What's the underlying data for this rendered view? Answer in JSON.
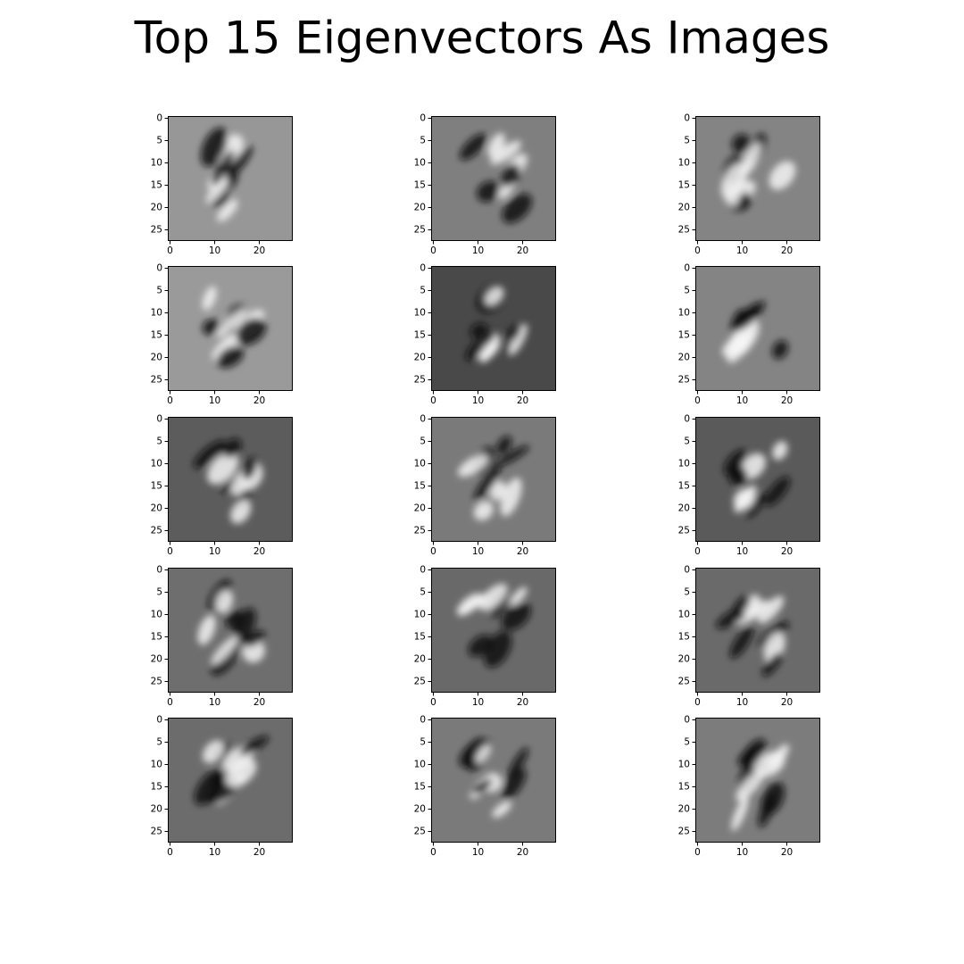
{
  "title": "Top 15 Eigenvectors As Images",
  "chart_data": [
    {
      "type": "image",
      "background": "#979797",
      "xlim": [
        -0.5,
        27.5
      ],
      "ylim": [
        27.5,
        -0.5
      ],
      "xticks": [
        0,
        10,
        20
      ],
      "yticks": [
        0,
        5,
        10,
        15,
        20,
        25
      ]
    },
    {
      "type": "image",
      "background": "#7f7f7f",
      "xlim": [
        -0.5,
        27.5
      ],
      "ylim": [
        27.5,
        -0.5
      ],
      "xticks": [
        0,
        10,
        20
      ],
      "yticks": [
        0,
        5,
        10,
        15,
        20,
        25
      ]
    },
    {
      "type": "image",
      "background": "#848484",
      "xlim": [
        -0.5,
        27.5
      ],
      "ylim": [
        27.5,
        -0.5
      ],
      "xticks": [
        0,
        10,
        20
      ],
      "yticks": [
        0,
        5,
        10,
        15,
        20,
        25
      ]
    },
    {
      "type": "image",
      "background": "#9a9a9a",
      "xlim": [
        -0.5,
        27.5
      ],
      "ylim": [
        27.5,
        -0.5
      ],
      "xticks": [
        0,
        10,
        20
      ],
      "yticks": [
        0,
        5,
        10,
        15,
        20,
        25
      ]
    },
    {
      "type": "image",
      "background": "#494949",
      "xlim": [
        -0.5,
        27.5
      ],
      "ylim": [
        27.5,
        -0.5
      ],
      "xticks": [
        0,
        10,
        20
      ],
      "yticks": [
        0,
        5,
        10,
        15,
        20,
        25
      ]
    },
    {
      "type": "image",
      "background": "#848484",
      "xlim": [
        -0.5,
        27.5
      ],
      "ylim": [
        27.5,
        -0.5
      ],
      "xticks": [
        0,
        10,
        20
      ],
      "yticks": [
        0,
        5,
        10,
        15,
        20,
        25
      ]
    },
    {
      "type": "image",
      "background": "#5c5c5c",
      "xlim": [
        -0.5,
        27.5
      ],
      "ylim": [
        27.5,
        -0.5
      ],
      "xticks": [
        0,
        10,
        20
      ],
      "yticks": [
        0,
        5,
        10,
        15,
        20,
        25
      ]
    },
    {
      "type": "image",
      "background": "#7a7a7a",
      "xlim": [
        -0.5,
        27.5
      ],
      "ylim": [
        27.5,
        -0.5
      ],
      "xticks": [
        0,
        10,
        20
      ],
      "yticks": [
        0,
        5,
        10,
        15,
        20,
        25
      ]
    },
    {
      "type": "image",
      "background": "#5a5a5a",
      "xlim": [
        -0.5,
        27.5
      ],
      "ylim": [
        27.5,
        -0.5
      ],
      "xticks": [
        0,
        10,
        20
      ],
      "yticks": [
        0,
        5,
        10,
        15,
        20,
        25
      ]
    },
    {
      "type": "image",
      "background": "#6e6e6e",
      "xlim": [
        -0.5,
        27.5
      ],
      "ylim": [
        27.5,
        -0.5
      ],
      "xticks": [
        0,
        10,
        20
      ],
      "yticks": [
        0,
        5,
        10,
        15,
        20,
        25
      ]
    },
    {
      "type": "image",
      "background": "#696969",
      "xlim": [
        -0.5,
        27.5
      ],
      "ylim": [
        27.5,
        -0.5
      ],
      "xticks": [
        0,
        10,
        20
      ],
      "yticks": [
        0,
        5,
        10,
        15,
        20,
        25
      ]
    },
    {
      "type": "image",
      "background": "#6a6a6a",
      "xlim": [
        -0.5,
        27.5
      ],
      "ylim": [
        27.5,
        -0.5
      ],
      "xticks": [
        0,
        10,
        20
      ],
      "yticks": [
        0,
        5,
        10,
        15,
        20,
        25
      ]
    },
    {
      "type": "image",
      "background": "#6c6c6c",
      "xlim": [
        -0.5,
        27.5
      ],
      "ylim": [
        27.5,
        -0.5
      ],
      "xticks": [
        0,
        10,
        20
      ],
      "yticks": [
        0,
        5,
        10,
        15,
        20,
        25
      ]
    },
    {
      "type": "image",
      "background": "#7a7a7a",
      "xlim": [
        -0.5,
        27.5
      ],
      "ylim": [
        27.5,
        -0.5
      ],
      "xticks": [
        0,
        10,
        20
      ],
      "yticks": [
        0,
        5,
        10,
        15,
        20,
        25
      ]
    },
    {
      "type": "image",
      "background": "#7c7c7c",
      "xlim": [
        -0.5,
        27.5
      ],
      "ylim": [
        27.5,
        -0.5
      ],
      "xticks": [
        0,
        10,
        20
      ],
      "yticks": [
        0,
        5,
        10,
        15,
        20,
        25
      ]
    }
  ]
}
